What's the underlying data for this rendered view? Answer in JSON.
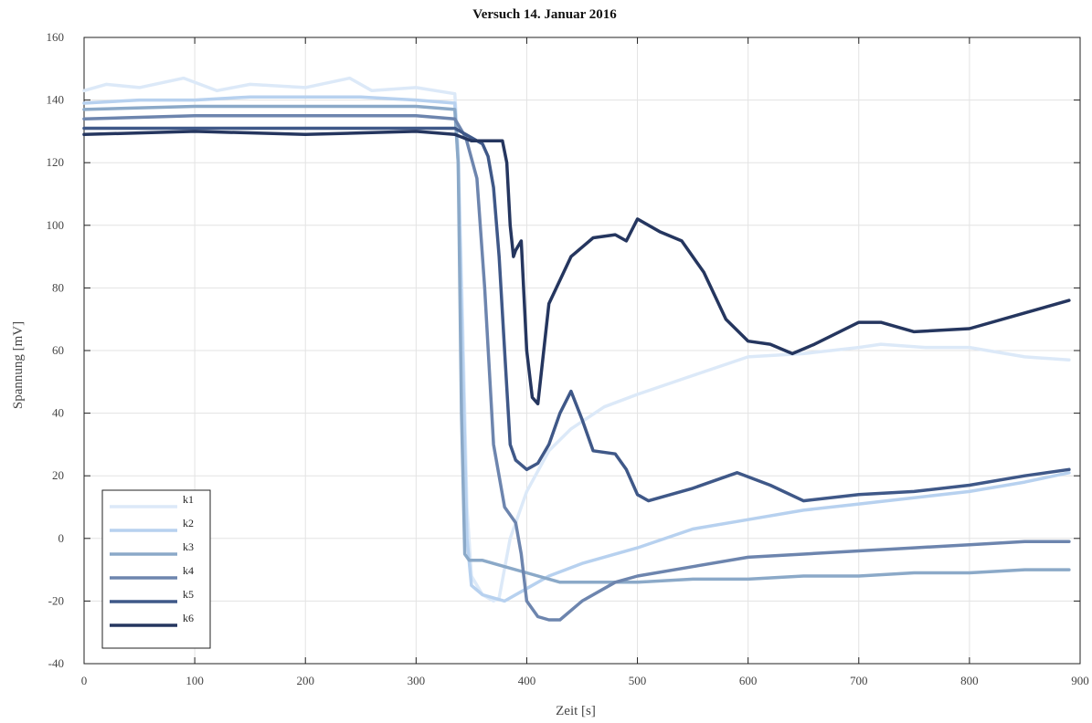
{
  "chart_data": {
    "type": "line",
    "title": "Versuch 14. Januar 2016",
    "xlabel": "Zeit [s]",
    "ylabel": "Spannung [mV]",
    "xlim": [
      0,
      900
    ],
    "ylim": [
      -40,
      160
    ],
    "xticks": [
      0,
      100,
      200,
      300,
      400,
      500,
      600,
      700,
      800,
      900
    ],
    "yticks": [
      -40,
      -20,
      0,
      20,
      40,
      60,
      80,
      100,
      120,
      140,
      160
    ],
    "grid": true,
    "legend": "bottom-left",
    "series": [
      {
        "name": "k1",
        "color": "#dce9f8",
        "x": [
          0,
          20,
          50,
          90,
          120,
          150,
          200,
          240,
          260,
          300,
          335,
          338,
          342,
          346,
          350,
          360,
          370,
          375,
          385,
          400,
          420,
          440,
          470,
          500,
          550,
          600,
          650,
          700,
          720,
          760,
          800,
          850,
          890
        ],
        "y": [
          143,
          145,
          144,
          147,
          143,
          145,
          144,
          147,
          143,
          144,
          142,
          125,
          70,
          10,
          -12,
          -18,
          -20,
          -19,
          0,
          15,
          28,
          35,
          42,
          46,
          52,
          58,
          59,
          61,
          62,
          61,
          61,
          58,
          57
        ]
      },
      {
        "name": "k2",
        "color": "#b7d1ef",
        "x": [
          0,
          50,
          100,
          150,
          200,
          250,
          300,
          335,
          338,
          342,
          346,
          350,
          360,
          380,
          400,
          420,
          450,
          500,
          550,
          600,
          650,
          700,
          750,
          800,
          850,
          890
        ],
        "y": [
          139,
          140,
          140,
          141,
          141,
          141,
          140,
          139,
          120,
          60,
          0,
          -15,
          -18,
          -20,
          -16,
          -12,
          -8,
          -3,
          3,
          6,
          9,
          11,
          13,
          15,
          18,
          21
        ]
      },
      {
        "name": "k3",
        "color": "#8ba9c8",
        "x": [
          0,
          100,
          200,
          300,
          335,
          338,
          341,
          344,
          348,
          360,
          380,
          400,
          430,
          460,
          500,
          550,
          600,
          650,
          700,
          750,
          800,
          850,
          890
        ],
        "y": [
          137,
          138,
          138,
          138,
          137,
          120,
          40,
          -5,
          -7,
          -7,
          -9,
          -11,
          -14,
          -14,
          -14,
          -13,
          -13,
          -12,
          -12,
          -11,
          -11,
          -10,
          -10
        ]
      },
      {
        "name": "k4",
        "color": "#6d85ae",
        "x": [
          0,
          100,
          200,
          300,
          335,
          345,
          355,
          362,
          370,
          380,
          390,
          395,
          400,
          410,
          420,
          430,
          450,
          480,
          500,
          550,
          600,
          650,
          700,
          750,
          800,
          850,
          890
        ],
        "y": [
          134,
          135,
          135,
          135,
          134,
          128,
          115,
          80,
          30,
          10,
          5,
          -5,
          -20,
          -25,
          -26,
          -26,
          -20,
          -14,
          -12,
          -9,
          -6,
          -5,
          -4,
          -3,
          -2,
          -1,
          -1
        ]
      },
      {
        "name": "k5",
        "color": "#3f5888",
        "x": [
          0,
          100,
          200,
          300,
          335,
          340,
          345,
          350,
          360,
          365,
          370,
          375,
          380,
          385,
          390,
          400,
          410,
          420,
          430,
          440,
          450,
          460,
          480,
          490,
          500,
          510,
          550,
          590,
          620,
          650,
          700,
          750,
          800,
          850,
          890
        ],
        "y": [
          131,
          131,
          131,
          131,
          131,
          130,
          129,
          128,
          126,
          122,
          112,
          90,
          60,
          30,
          25,
          22,
          24,
          30,
          40,
          47,
          38,
          28,
          27,
          22,
          14,
          12,
          16,
          21,
          17,
          12,
          14,
          15,
          17,
          20,
          22
        ]
      },
      {
        "name": "k6",
        "color": "#25365f",
        "x": [
          0,
          100,
          200,
          300,
          335,
          350,
          360,
          370,
          378,
          382,
          385,
          388,
          390,
          395,
          400,
          405,
          410,
          420,
          440,
          460,
          480,
          490,
          500,
          520,
          540,
          560,
          580,
          600,
          620,
          640,
          660,
          700,
          720,
          750,
          800,
          850,
          890
        ],
        "y": [
          129,
          130,
          129,
          130,
          129,
          127,
          127,
          127,
          127,
          120,
          100,
          90,
          92,
          95,
          60,
          45,
          43,
          75,
          90,
          96,
          97,
          95,
          102,
          98,
          95,
          85,
          70,
          63,
          62,
          59,
          62,
          69,
          69,
          66,
          67,
          72,
          76
        ]
      }
    ]
  }
}
